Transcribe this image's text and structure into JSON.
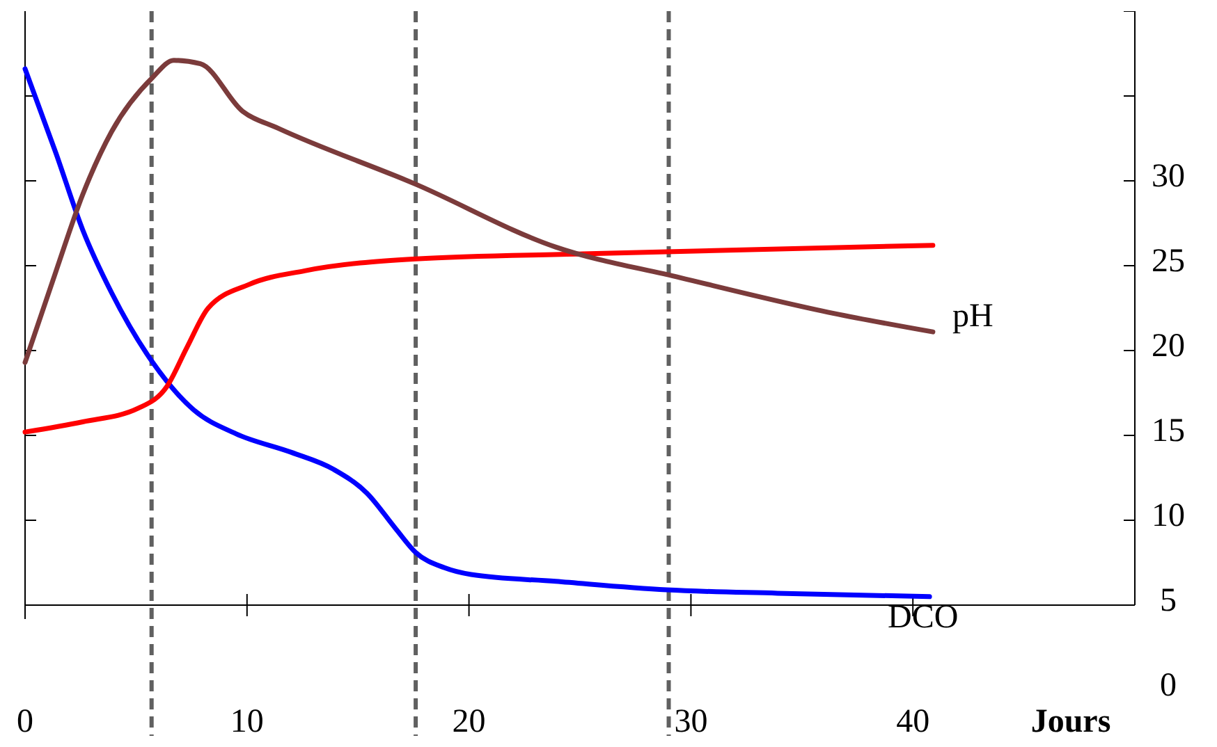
{
  "chart_data": {
    "type": "line",
    "xlabel": "Jours",
    "xlim": [
      0,
      50
    ],
    "xticks": [
      0,
      10,
      20,
      30,
      40
    ],
    "ylim": [
      0,
      40
    ],
    "yticks": [
      0,
      5,
      10,
      15,
      20,
      25,
      30,
      {
        "value": 35,
        "label": null
      },
      {
        "value": 40,
        "label": null
      }
    ],
    "line_style": "solid",
    "ref_lines": [
      {
        "axis": "x",
        "value": 5.7,
        "color": "#606060",
        "line_style": "dashed"
      },
      {
        "axis": "x",
        "value": 17.6,
        "color": "#606060",
        "line_style": "dashed"
      },
      {
        "axis": "x",
        "value": 29,
        "color": "#606060",
        "line_style": "dashed"
      }
    ],
    "series": [
      {
        "name": "DCO",
        "color": "#0000ff",
        "x": [
          0,
          1.4,
          2.6,
          3.9,
          5.75,
          7.6,
          9.5,
          12,
          13.9,
          15.4,
          16.7,
          17.6,
          18.9,
          20.1,
          23.9,
          28.9,
          33.9,
          40.75
        ],
        "values": [
          36.6,
          31.6,
          27.1,
          23.4,
          19.3,
          16.5,
          15.1,
          14,
          13,
          11.6,
          9.5,
          8.1,
          7.2,
          6.8,
          6.4,
          5.9,
          5.7,
          5.5
        ]
      },
      {
        "color": "#ff0000",
        "x": [
          0,
          2.6,
          5.1,
          6.4,
          7.3,
          8.25,
          10.1,
          12.6,
          17.6,
          25.1,
          40.9
        ],
        "values": [
          15.2,
          15.8,
          16.6,
          17.9,
          20.2,
          22.5,
          23.9,
          24.7,
          25.4,
          25.7,
          26.2
        ]
      },
      {
        "name": "pH",
        "color": "#7b3b3b",
        "x": [
          0,
          1.4,
          2.6,
          3.9,
          5.75,
          6.7,
          7.9,
          9.8,
          11.4,
          17.6,
          23.9,
          29.5,
          36.4,
          40.9
        ],
        "values": [
          19.3,
          24.7,
          29.2,
          32.9,
          36.1,
          37.1,
          36.9,
          34.1,
          33.1,
          29.8,
          26.1,
          24.3,
          22.2,
          21.1
        ]
      }
    ]
  }
}
